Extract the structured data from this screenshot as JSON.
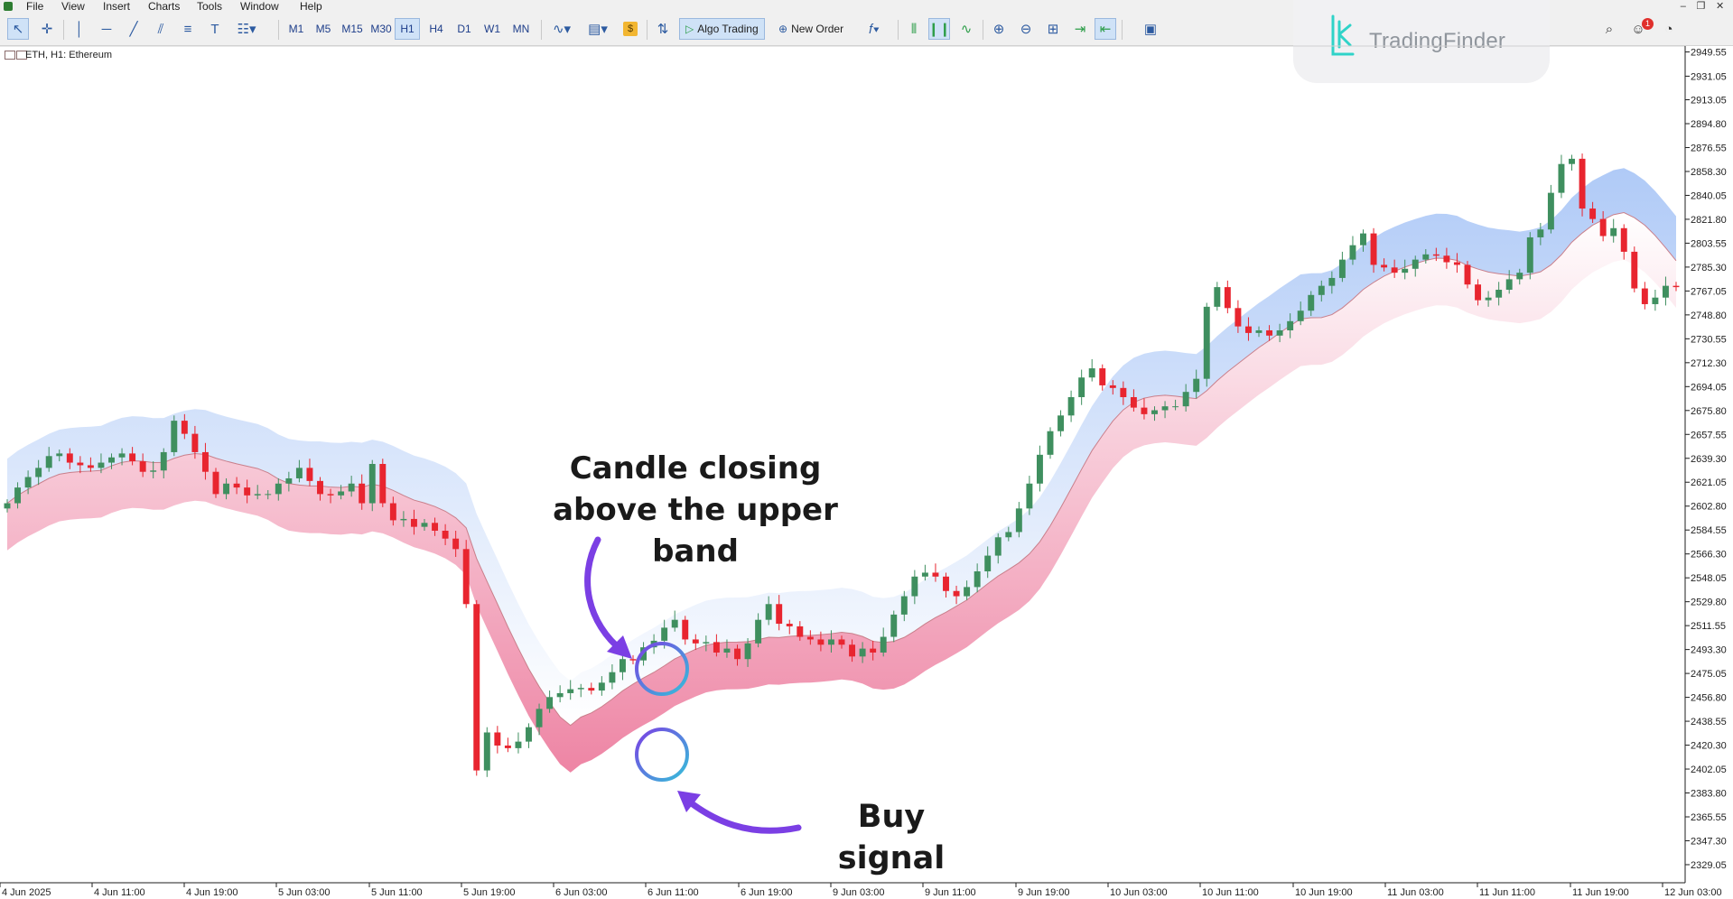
{
  "menu": [
    "File",
    "View",
    "Insert",
    "Charts",
    "Tools",
    "Window",
    "Help"
  ],
  "toolbar": {
    "timeframes": [
      "M1",
      "M5",
      "M15",
      "M30",
      "H1",
      "H4",
      "D1",
      "W1",
      "MN"
    ],
    "active_timeframe": "H1",
    "algo_trading": "Algo Trading",
    "new_order": "New Order",
    "notification_count": "1"
  },
  "logo": {
    "text": "TradingFinder"
  },
  "chart": {
    "title": "ETH, H1:  Ethereum"
  },
  "annotations": {
    "candle_close": [
      "Candle closing",
      "above the upper band"
    ],
    "buy_signal": "Buy signal"
  },
  "colors": {
    "bull": "#3f8f5f",
    "bear": "#e8252f",
    "upper_band": "#6f9ff0",
    "lower_band": "#e85c86",
    "middle_line": "#c97f8b",
    "annotation_arrow": "#7b3fe4"
  },
  "chart_data": {
    "type": "candlestick",
    "symbol": "ETH",
    "timeframe": "H1",
    "y_ticks": [
      "2949.55",
      "2931.05",
      "2913.05",
      "2894.80",
      "2876.55",
      "2858.30",
      "2840.05",
      "2821.80",
      "2803.55",
      "2785.30",
      "2767.05",
      "2748.80",
      "2730.55",
      "2712.30",
      "2694.05",
      "2675.80",
      "2657.55",
      "2639.30",
      "2621.05",
      "2602.80",
      "2584.55",
      "2566.30",
      "2548.05",
      "2529.80",
      "2511.55",
      "2493.30",
      "2475.05",
      "2456.80",
      "2438.55",
      "2420.30",
      "2402.05",
      "2383.80",
      "2365.55",
      "2347.30",
      "2329.05"
    ],
    "ylim": [
      2318,
      2952
    ],
    "x_ticks": [
      "4 Jun 2025",
      "4 Jun 11:00",
      "4 Jun 19:00",
      "5 Jun 03:00",
      "5 Jun 11:00",
      "5 Jun 19:00",
      "6 Jun 03:00",
      "6 Jun 11:00",
      "6 Jun 19:00",
      "9 Jun 03:00",
      "9 Jun 11:00",
      "9 Jun 19:00",
      "10 Jun 03:00",
      "10 Jun 11:00",
      "10 Jun 19:00",
      "11 Jun 03:00",
      "11 Jun 11:00",
      "11 Jun 19:00",
      "12 Jun 03:00"
    ],
    "close": [
      2605,
      2617,
      2625,
      2632,
      2641,
      2643,
      2636,
      2634,
      2632,
      2636,
      2640,
      2643,
      2637,
      2629,
      2630,
      2644,
      2668,
      2658,
      2644,
      2629,
      2612,
      2620,
      2617,
      2611,
      2612,
      2612,
      2620,
      2624,
      2632,
      2622,
      2612,
      2611,
      2614,
      2620,
      2605,
      2635,
      2605,
      2592,
      2593,
      2587,
      2590,
      2584,
      2578,
      2570,
      2528,
      2401,
      2430,
      2420,
      2418,
      2423,
      2434,
      2448,
      2457,
      2460,
      2463,
      2464,
      2462,
      2468,
      2476,
      2486,
      2485,
      2495,
      2500,
      2510,
      2516,
      2501,
      2498,
      2499,
      2491,
      2494,
      2486,
      2498,
      2516,
      2528,
      2513,
      2511,
      2503,
      2501,
      2497,
      2501,
      2497,
      2488,
      2494,
      2491,
      2503,
      2520,
      2534,
      2549,
      2552,
      2549,
      2538,
      2534,
      2541,
      2553,
      2565,
      2579,
      2583,
      2601,
      2620,
      2642,
      2660,
      2672,
      2686,
      2701,
      2708,
      2695,
      2693,
      2686,
      2678,
      2673,
      2676,
      2679,
      2679,
      2690,
      2700,
      2755,
      2770,
      2754,
      2740,
      2735,
      2737,
      2733,
      2737,
      2744,
      2752,
      2764,
      2771,
      2777,
      2791,
      2802,
      2811,
      2787,
      2785,
      2781,
      2784,
      2791,
      2795,
      2794,
      2789,
      2787,
      2772,
      2760,
      2762,
      2768,
      2776,
      2781,
      2808,
      2814,
      2842,
      2864,
      2868,
      2830,
      2822,
      2809,
      2815,
      2797,
      2769,
      2757,
      2762,
      2771,
      2770
    ],
    "series": [
      {
        "name": "Upper band"
      },
      {
        "name": "Middle line"
      },
      {
        "name": "Lower band"
      }
    ]
  }
}
